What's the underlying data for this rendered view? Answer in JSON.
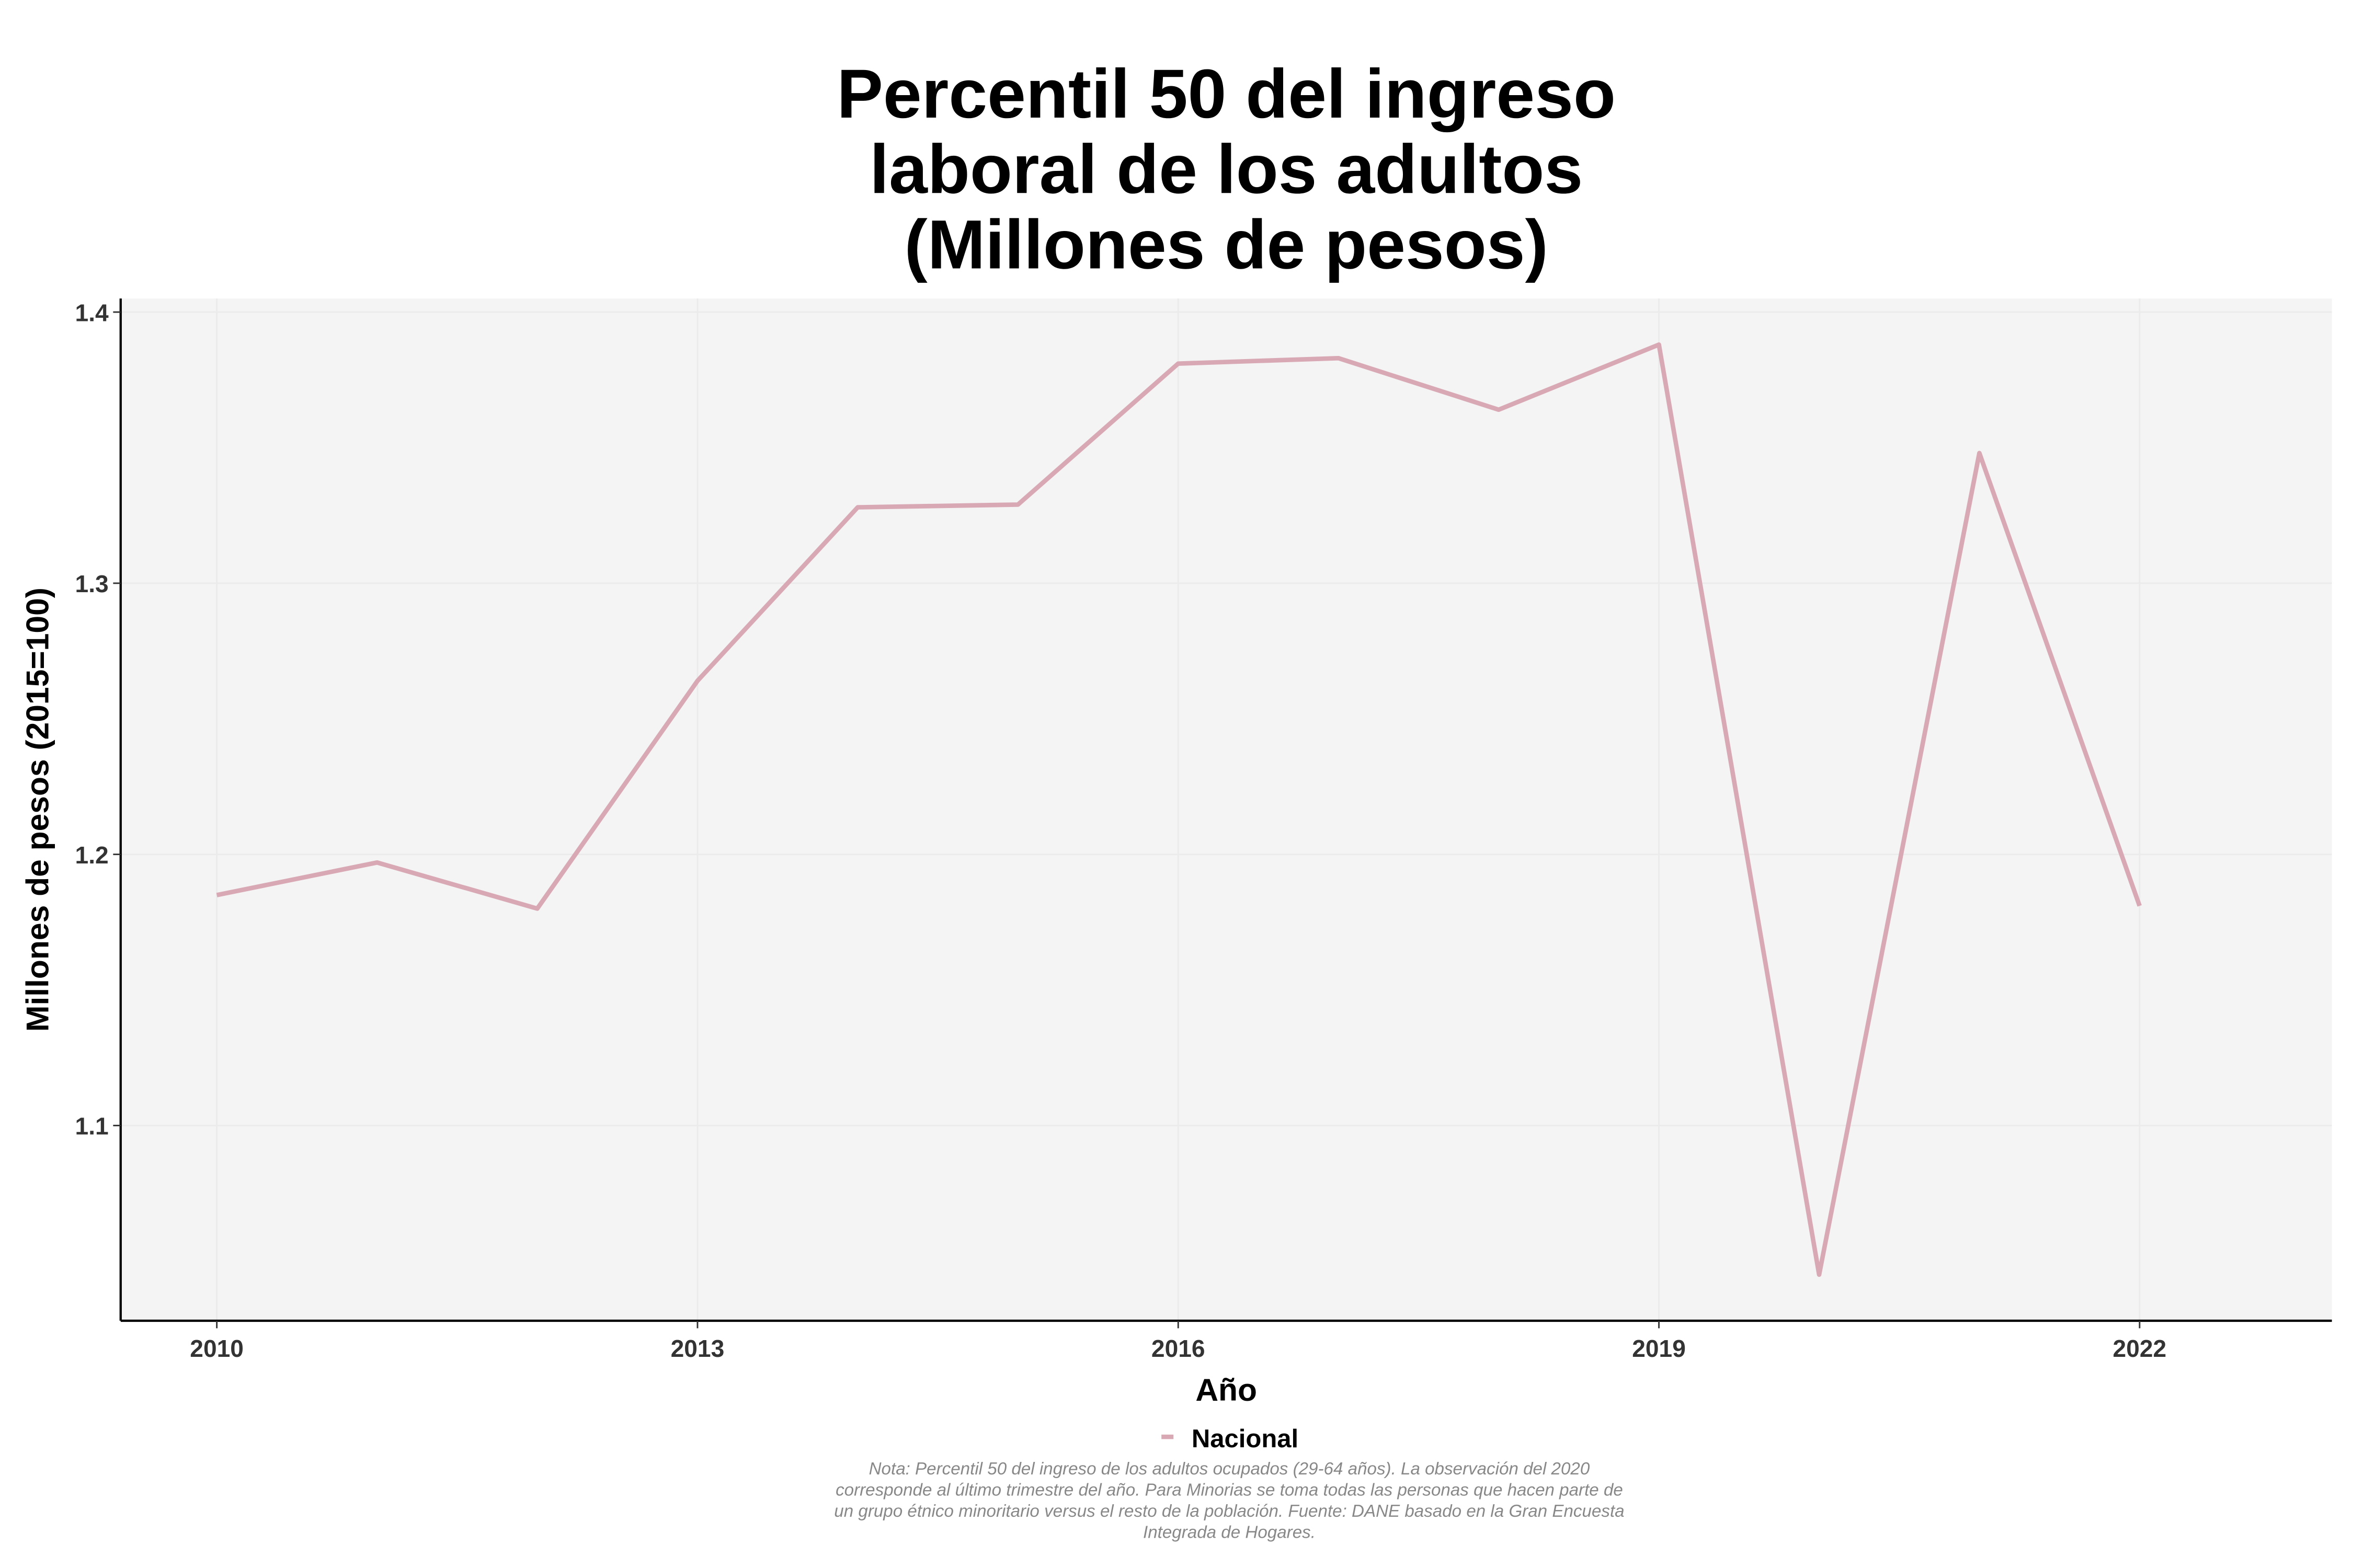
{
  "chart_data": {
    "type": "line",
    "title": [
      "Percentil 50 del ingreso",
      "laboral de los adultos",
      "(Millones de pesos)"
    ],
    "xlabel": "Año",
    "ylabel": "Millones de pesos (2015=100)",
    "x": [
      2010,
      2011,
      2012,
      2013,
      2014,
      2015,
      2016,
      2017,
      2018,
      2019,
      2020,
      2021,
      2022
    ],
    "series": [
      {
        "name": "Nacional",
        "color": "#d8a9b5",
        "values": [
          1.185,
          1.197,
          1.18,
          1.264,
          1.328,
          1.329,
          1.381,
          1.383,
          1.364,
          1.388,
          1.045,
          1.348,
          1.181
        ]
      }
    ],
    "xticks": [
      "2010",
      "2013",
      "2016",
      "2019",
      "2022"
    ],
    "yticks": [
      "1.1",
      "1.2",
      "1.3",
      "1.4"
    ],
    "xlim": [
      2009.4,
      2023.2
    ],
    "ylim": [
      1.028,
      1.405
    ],
    "grid": true,
    "legend_position": "bottom",
    "note": [
      "Nota: Percentil 50 del ingreso de los adultos ocupados (29-64 años). La observación del 2020",
      "corresponde al último trimestre del año. Para Minorias se toma todas las personas que hacen parte de",
      "un grupo étnico minoritario versus el resto de la población. Fuente: DANE basado en la Gran Encuesta",
      "Integrada de Hogares."
    ]
  }
}
